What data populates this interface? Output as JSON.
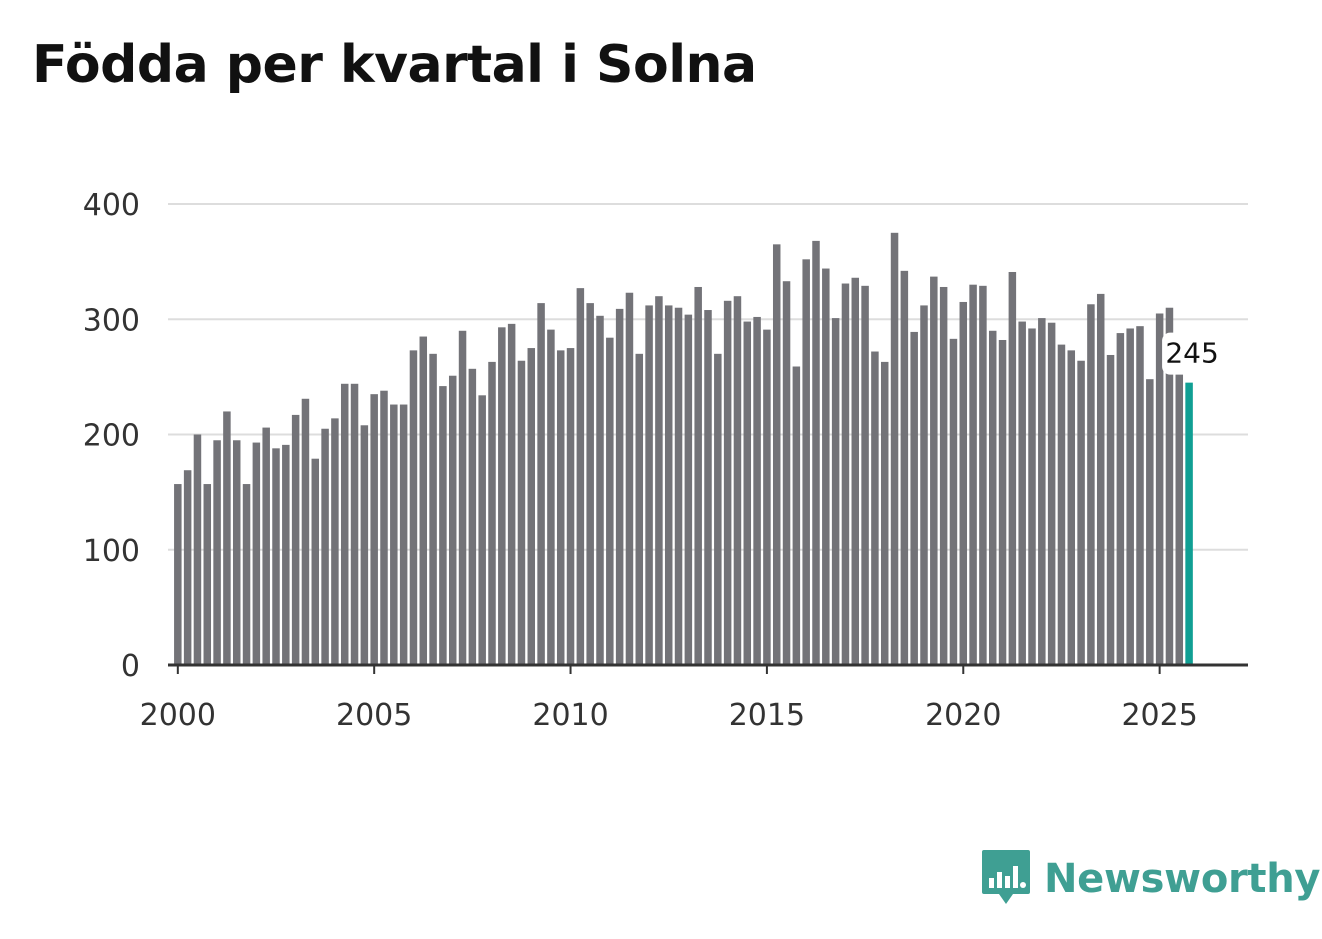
{
  "title": "Födda per kvartal i Solna",
  "brand": {
    "name": "Newsworthy",
    "color": "#3f9f93",
    "icon": "bar-chart-speech-bubble-icon"
  },
  "colors": {
    "bar": "#737378",
    "highlight": "#109f94",
    "grid": "#dddddd",
    "axis": "#333333",
    "text": "#111111"
  },
  "chart_data": {
    "type": "bar",
    "title": "Födda per kvartal i Solna",
    "xlabel": "",
    "ylabel": "",
    "ylim": [
      0,
      400
    ],
    "yticks": [
      0,
      100,
      200,
      300,
      400
    ],
    "xlim": [
      1999.75,
      2027.25
    ],
    "xticks": [
      2000,
      2005,
      2010,
      2015,
      2020,
      2025
    ],
    "grid": true,
    "legend": "none",
    "x_start": 2000,
    "period": "quarter",
    "values": [
      157,
      169,
      200,
      157,
      195,
      220,
      195,
      157,
      193,
      206,
      188,
      191,
      217,
      231,
      179,
      205,
      214,
      244,
      244,
      208,
      235,
      238,
      226,
      226,
      273,
      285,
      270,
      242,
      251,
      290,
      257,
      234,
      263,
      293,
      296,
      264,
      275,
      314,
      291,
      273,
      275,
      327,
      314,
      303,
      284,
      309,
      323,
      270,
      312,
      320,
      312,
      310,
      304,
      328,
      308,
      270,
      316,
      320,
      298,
      302,
      291,
      365,
      333,
      259,
      352,
      368,
      344,
      301,
      331,
      336,
      329,
      272,
      263,
      375,
      342,
      289,
      312,
      337,
      328,
      283,
      315,
      330,
      329,
      290,
      282,
      341,
      298,
      292,
      301,
      297,
      278,
      273,
      264,
      313,
      322,
      269,
      288,
      292,
      294,
      248,
      305,
      310,
      262,
      245
    ],
    "highlight": {
      "label": "245",
      "value": 245
    }
  }
}
